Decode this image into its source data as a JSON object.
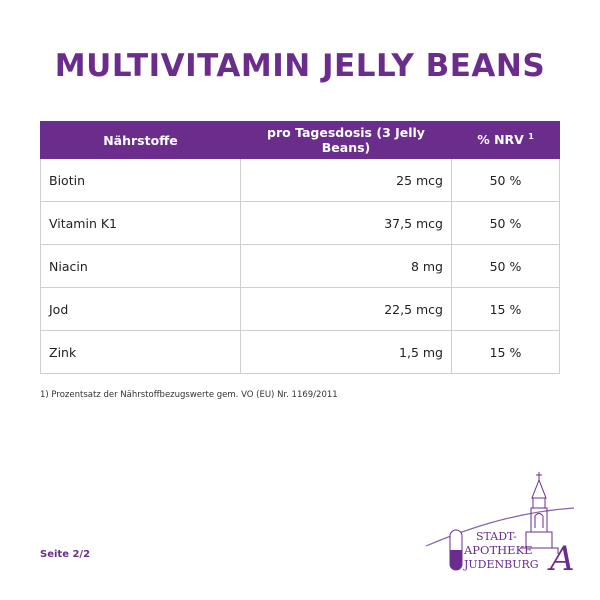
{
  "title": "MULTIVITAMIN JELLY BEANS",
  "table": {
    "headers": [
      "Nährstoffe",
      "pro Tagesdosis (3 Jelly Beans)",
      "% NRV",
      "1"
    ],
    "rows": [
      {
        "name": "Biotin",
        "dose": "25 mcg",
        "nrv": "50 %"
      },
      {
        "name": "Vitamin K1",
        "dose": "37,5 mcg",
        "nrv": "50 %"
      },
      {
        "name": "Niacin",
        "dose": "8 mg",
        "nrv": "50 %"
      },
      {
        "name": "Jod",
        "dose": "22,5 mcg",
        "nrv": "15 %"
      },
      {
        "name": "Zink",
        "dose": "1,5 mg",
        "nrv": "15 %"
      }
    ]
  },
  "footnote": "1) Prozentsatz der Nährstoffbezugswerte gem. VO (EU) Nr. 1169/2011",
  "page_label": "Seite 2/2",
  "logo": {
    "line1": "STADT-",
    "line2": "APOTHEKE",
    "line3": "JUDENBURG",
    "monogram": "A",
    "icon": "church-tower-capsule-logo"
  },
  "colors": {
    "brand": "#6b2d8c",
    "border": "#cfcfcf"
  }
}
